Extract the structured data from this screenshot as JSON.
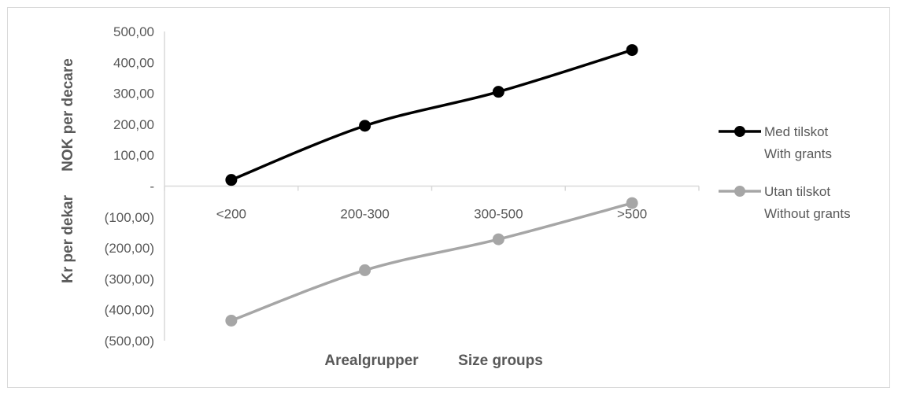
{
  "chart_data": {
    "type": "line",
    "title": "",
    "categories": [
      "<200",
      "200-300",
      "300-500",
      ">500"
    ],
    "series": [
      {
        "name_line1": "Med tilskot",
        "name_line2": "With grants",
        "values": [
          20,
          195,
          305,
          440
        ],
        "color": "#000000"
      },
      {
        "name_line1": "Utan tilskot",
        "name_line2": "Without grants",
        "values": [
          -435,
          -272,
          -172,
          -55
        ],
        "color": "#a6a6a6"
      }
    ],
    "y_ticks": [
      {
        "value": 500,
        "label": "500,00"
      },
      {
        "value": 400,
        "label": "400,00"
      },
      {
        "value": 300,
        "label": "300,00"
      },
      {
        "value": 200,
        "label": "200,00"
      },
      {
        "value": 100,
        "label": "100,00"
      },
      {
        "value": 0,
        "label": "-"
      },
      {
        "value": -100,
        "label": "(100,00)"
      },
      {
        "value": -200,
        "label": "(200,00)"
      },
      {
        "value": -300,
        "label": "(300,00)"
      },
      {
        "value": -400,
        "label": "(400,00)"
      },
      {
        "value": -500,
        "label": "(500,00)"
      }
    ],
    "ylim": [
      -500,
      500
    ],
    "xlabel_no": "Arealgrupper",
    "xlabel_en": "Size groups",
    "ylabel_no": "Kr per dekar",
    "ylabel_en": "NOK per decare",
    "grid": false,
    "legend_position": "right"
  }
}
